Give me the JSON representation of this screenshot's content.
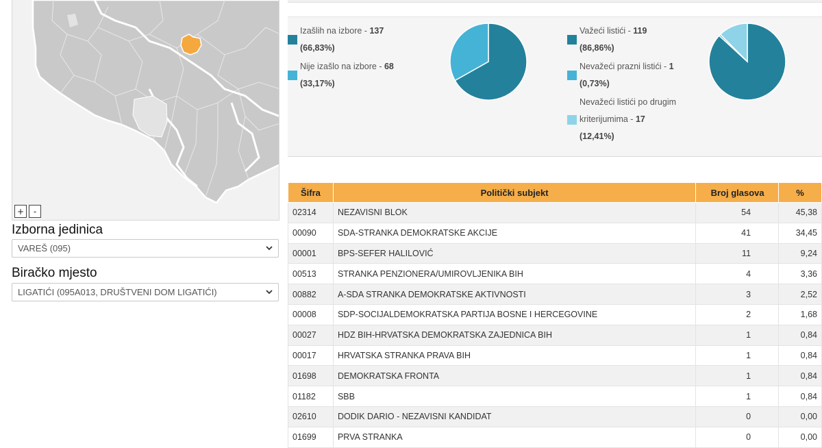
{
  "map": {
    "zoom_in": "+",
    "zoom_out": "-",
    "colors": {
      "background": "#f2f2f2",
      "region": "#c9c9c9",
      "border": "#ffffff",
      "selected": "#f4a83e",
      "inactive": "#e3e3e3"
    }
  },
  "filters": {
    "unit_label": "Izborna jedinica",
    "unit_value": "VAREŠ (095)",
    "station_label": "Biračko mjesto",
    "station_value": "LIGATIĆI (095A013, DRUŠTVENI DOM LIGATIĆI)"
  },
  "turnout": {
    "items": [
      {
        "label": "Izašlih na izbore - ",
        "count": "137",
        "pct": "(66,83%)",
        "color": "#24819b",
        "value": 66.83
      },
      {
        "label": "Nije izašlo na izbore - ",
        "count": "68",
        "pct": "(33,17%)",
        "color": "#45b3d6",
        "value": 33.17
      }
    ]
  },
  "ballots": {
    "items": [
      {
        "label": "Važeći listići - ",
        "count": "119",
        "pct": "(86,86%)",
        "color": "#24819b",
        "value": 86.86
      },
      {
        "label": "Nevažeći prazni listići - ",
        "count": "1",
        "pct": "(0,73%)",
        "color": "#45b3d6",
        "value": 0.73
      },
      {
        "label_line1": "Nevažeći listići po drugim",
        "label_line2": "kriterijumima - ",
        "count": "17",
        "pct": "(12,41%)",
        "color": "#8fd3e8",
        "value": 12.41
      }
    ]
  },
  "table": {
    "headers": {
      "code": "Šifra",
      "party": "Politički subjekt",
      "votes": "Broj glasova",
      "pct": "%"
    },
    "rows": [
      {
        "code": "02314",
        "party": "NEZAVISNI BLOK",
        "votes": "54",
        "pct": "45,38"
      },
      {
        "code": "00090",
        "party": "SDA-STRANKA DEMOKRATSKE AKCIJE",
        "votes": "41",
        "pct": "34,45"
      },
      {
        "code": "00001",
        "party": "BPS-SEFER HALILOVIĆ",
        "votes": "11",
        "pct": "9,24"
      },
      {
        "code": "00513",
        "party": "STRANKA PENZIONERA/UMIROVLJENIKA BIH",
        "votes": "4",
        "pct": "3,36"
      },
      {
        "code": "00882",
        "party": "A-SDA STRANKA DEMOKRATSKE AKTIVNOSTI",
        "votes": "3",
        "pct": "2,52"
      },
      {
        "code": "00008",
        "party": "SDP-SOCIJALDEMOKRATSKA PARTIJA BOSNE I HERCEGOVINE",
        "votes": "2",
        "pct": "1,68"
      },
      {
        "code": "00027",
        "party": "HDZ BIH-HRVATSKA DEMOKRATSKA ZAJEDNICA BIH",
        "votes": "1",
        "pct": "0,84"
      },
      {
        "code": "00017",
        "party": "HRVATSKA STRANKA PRAVA BIH",
        "votes": "1",
        "pct": "0,84"
      },
      {
        "code": "01698",
        "party": "DEMOKRATSKA FRONTA",
        "votes": "1",
        "pct": "0,84"
      },
      {
        "code": "01182",
        "party": "SBB",
        "votes": "1",
        "pct": "0,84"
      },
      {
        "code": "02610",
        "party": "DODIK DARIO - NEZAVISNI KANDIDAT",
        "votes": "0",
        "pct": "0,00"
      },
      {
        "code": "01699",
        "party": "PRVA STRANKA",
        "votes": "0",
        "pct": "0,00"
      }
    ]
  }
}
